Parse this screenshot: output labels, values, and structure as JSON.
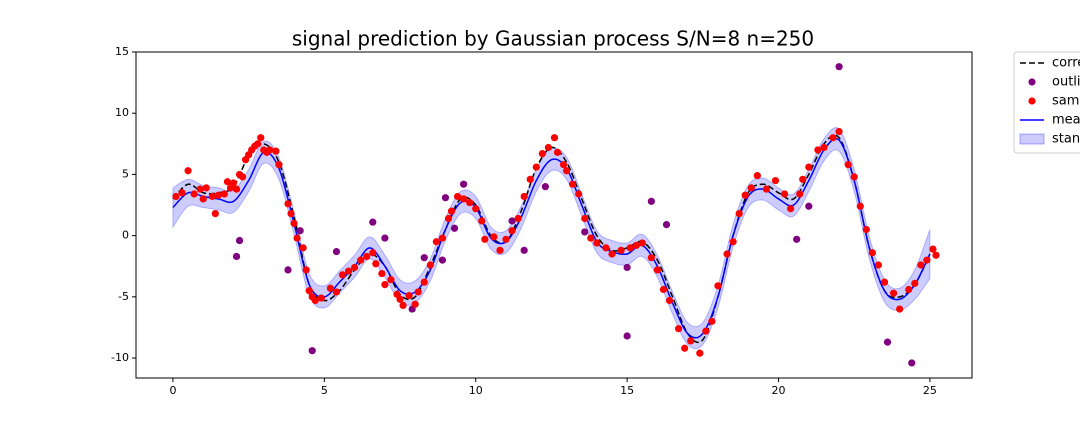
{
  "chart_data": {
    "type": "line",
    "title": "signal prediction by Gaussian process S/N=8 n=250",
    "xlim": [
      -1.22,
      26.39
    ],
    "ylim": [
      -11.63,
      15
    ],
    "xticks": [
      0,
      5,
      10,
      15,
      20,
      25
    ],
    "yticks": [
      -10,
      -5,
      0,
      5,
      10,
      15
    ],
    "grid": false,
    "legend": "outside right",
    "x": [
      0,
      0.5,
      1,
      1.5,
      2,
      2.5,
      3,
      3.5,
      4,
      4.5,
      5,
      5.5,
      6,
      6.5,
      7,
      7.5,
      8,
      8.5,
      9,
      9.5,
      10,
      10.5,
      11,
      11.5,
      12,
      12.5,
      13,
      13.5,
      14,
      14.5,
      15,
      15.5,
      16,
      16.5,
      17,
      17.5,
      18,
      18.5,
      19,
      19.5,
      20,
      20.5,
      21,
      21.5,
      22,
      22.5,
      23,
      23.5,
      24,
      24.5,
      25
    ],
    "series": [
      {
        "name": "corre",
        "type": "line",
        "dash": true,
        "color": "#000000",
        "values": [
          3.0,
          4.2,
          3.5,
          3.5,
          4.0,
          6.5,
          7.5,
          6.0,
          1.5,
          -4.0,
          -5.3,
          -4.5,
          -2.8,
          -1.5,
          -2.5,
          -4.8,
          -5.0,
          -2.5,
          0.5,
          3.0,
          2.5,
          0.0,
          -0.5,
          2.0,
          5.5,
          7.2,
          6.0,
          3.0,
          0.0,
          -1.2,
          -1.0,
          -0.5,
          -2.0,
          -5.0,
          -8.0,
          -8.5,
          -5.0,
          0.0,
          3.5,
          4.2,
          3.5,
          3.0,
          5.0,
          7.5,
          8.0,
          4.5,
          -1.0,
          -4.5,
          -5.0,
          -4.0,
          -1.5
        ]
      },
      {
        "name": "outlie",
        "type": "scatter",
        "color": "#800080",
        "x": [
          2.1,
          2.2,
          3.8,
          4.2,
          4.6,
          5.4,
          6.6,
          7.0,
          7.9,
          8.3,
          8.9,
          9.0,
          9.3,
          9.6,
          11.2,
          11.6,
          12.3,
          13.6,
          15.0,
          15.0,
          15.8,
          16.3,
          20.6,
          21.0,
          22.0,
          23.6,
          24.4
        ],
        "values": [
          -1.7,
          -0.4,
          -2.8,
          0.4,
          -9.4,
          -1.3,
          1.1,
          -0.2,
          -6.0,
          -1.8,
          -2.0,
          3.1,
          0.6,
          4.2,
          1.2,
          -1.2,
          4.0,
          0.3,
          -8.2,
          -2.6,
          2.8,
          0.9,
          -0.3,
          2.4,
          13.8,
          -8.7,
          -10.4
        ]
      },
      {
        "name": "samp",
        "type": "scatter",
        "color": "#ff0000",
        "x": [
          0.1,
          0.3,
          0.5,
          0.7,
          0.9,
          1.0,
          1.1,
          1.3,
          1.4,
          1.5,
          1.7,
          1.8,
          1.9,
          2.0,
          2.1,
          2.2,
          2.3,
          2.4,
          2.5,
          2.6,
          2.7,
          2.8,
          2.9,
          3.0,
          3.1,
          3.2,
          3.4,
          3.5,
          3.8,
          3.9,
          4.0,
          4.1,
          4.3,
          4.4,
          4.5,
          4.6,
          4.7,
          4.9,
          5.2,
          5.4,
          5.6,
          5.8,
          6.0,
          6.2,
          6.4,
          6.6,
          6.7,
          6.9,
          7.0,
          7.2,
          7.4,
          7.5,
          7.6,
          7.8,
          8.0,
          8.1,
          8.3,
          8.5,
          8.7,
          8.9,
          9.1,
          9.2,
          9.4,
          9.6,
          9.8,
          10.0,
          10.2,
          10.3,
          10.6,
          10.8,
          11.0,
          11.2,
          11.4,
          11.6,
          11.8,
          12.0,
          12.2,
          12.4,
          12.6,
          12.7,
          12.9,
          13.0,
          13.2,
          13.4,
          13.6,
          13.8,
          14.0,
          14.3,
          14.5,
          14.8,
          15.1,
          15.3,
          15.5,
          15.8,
          16.0,
          16.2,
          16.4,
          16.7,
          16.9,
          17.1,
          17.4,
          17.6,
          17.8,
          18.0,
          18.3,
          18.5,
          18.7,
          18.9,
          19.1,
          19.3,
          19.6,
          19.9,
          20.2,
          20.4,
          20.7,
          20.8,
          21.0,
          21.3,
          21.5,
          21.8,
          22.0,
          22.3,
          22.5,
          22.7,
          22.9,
          23.1,
          23.3,
          23.5,
          23.8,
          24.0,
          24.3,
          24.5,
          24.7,
          24.9,
          25.1,
          25.2
        ],
        "values": [
          3.2,
          3.5,
          5.3,
          3.4,
          3.8,
          3.0,
          3.9,
          3.2,
          1.8,
          3.3,
          3.4,
          4.4,
          3.9,
          4.3,
          3.8,
          5.0,
          4.8,
          6.2,
          6.6,
          7.0,
          7.3,
          7.5,
          8.0,
          7.0,
          6.8,
          7.0,
          6.9,
          5.8,
          2.6,
          1.8,
          1.0,
          -0.2,
          -1.0,
          -2.8,
          -4.5,
          -5.0,
          -5.3,
          -5.1,
          -4.3,
          -4.6,
          -3.2,
          -2.9,
          -2.6,
          -2.0,
          -1.7,
          -1.4,
          -2.3,
          -3.1,
          -4.0,
          -3.6,
          -4.8,
          -5.2,
          -5.7,
          -4.9,
          -5.6,
          -4.6,
          -3.8,
          -2.4,
          -0.5,
          -0.2,
          1.4,
          2.0,
          3.2,
          3.0,
          2.7,
          2.2,
          1.2,
          -0.3,
          -0.1,
          -1.2,
          -0.3,
          0.4,
          1.4,
          3.2,
          4.6,
          5.6,
          6.7,
          7.2,
          8.0,
          6.8,
          5.8,
          5.3,
          4.2,
          3.4,
          1.4,
          -0.2,
          -0.6,
          -1.0,
          -1.5,
          -1.2,
          -1.0,
          -0.8,
          -0.6,
          -1.8,
          -2.8,
          -4.4,
          -5.3,
          -7.6,
          -9.2,
          -8.6,
          -9.6,
          -7.8,
          -7.0,
          -4.1,
          -1.5,
          -0.5,
          1.8,
          3.3,
          3.9,
          4.9,
          3.8,
          4.5,
          3.4,
          2.2,
          3.4,
          4.6,
          5.6,
          7.0,
          7.2,
          8.0,
          8.5,
          5.8,
          4.8,
          2.4,
          0.5,
          -1.4,
          -2.4,
          -3.8,
          -4.7,
          -6.0,
          -4.4,
          -3.9,
          -2.4,
          -2.0,
          -1.1,
          -1.6
        ]
      },
      {
        "name": "mean",
        "type": "line",
        "dash": false,
        "color": "#0000ff",
        "values": [
          2.3,
          3.5,
          3.2,
          3.0,
          2.8,
          4.5,
          6.8,
          5.5,
          1.0,
          -4.0,
          -5.0,
          -3.8,
          -2.5,
          -1.0,
          -2.5,
          -4.5,
          -4.6,
          -2.8,
          0.5,
          2.7,
          2.3,
          -0.2,
          -0.5,
          1.5,
          4.5,
          6.2,
          5.5,
          2.5,
          -0.5,
          -1.3,
          -1.5,
          -0.8,
          -2.5,
          -5.5,
          -8.0,
          -8.0,
          -5.0,
          0.0,
          3.2,
          3.8,
          3.0,
          2.5,
          4.5,
          7.0,
          7.8,
          4.5,
          -1.0,
          -4.5,
          -5.2,
          -4.0,
          -1.5
        ]
      },
      {
        "name": "stanc",
        "type": "area",
        "color": "#0000ff",
        "upper": [
          3.9,
          4.6,
          4.1,
          3.9,
          3.7,
          5.4,
          7.7,
          6.4,
          1.9,
          -3.1,
          -4.1,
          -2.9,
          -1.6,
          -0.1,
          -1.6,
          -3.6,
          -3.7,
          -1.9,
          1.4,
          3.6,
          3.2,
          0.7,
          0.4,
          2.4,
          5.4,
          7.1,
          6.4,
          3.4,
          0.4,
          -0.4,
          -0.6,
          0.1,
          -1.6,
          -4.6,
          -7.1,
          -7.1,
          -4.1,
          0.9,
          4.1,
          4.7,
          3.9,
          3.4,
          5.4,
          7.9,
          8.7,
          5.4,
          -0.1,
          -3.6,
          -4.3,
          -2.8,
          0.5
        ],
        "lower": [
          0.7,
          2.4,
          2.3,
          2.1,
          1.9,
          3.6,
          5.9,
          4.6,
          0.1,
          -4.9,
          -5.9,
          -4.7,
          -3.4,
          -1.9,
          -3.4,
          -5.4,
          -5.5,
          -3.7,
          -0.4,
          1.8,
          1.4,
          -1.1,
          -1.4,
          0.6,
          3.6,
          5.3,
          4.6,
          1.6,
          -1.4,
          -2.2,
          -2.4,
          -1.7,
          -3.4,
          -6.4,
          -8.9,
          -8.9,
          -5.9,
          -0.9,
          2.3,
          2.9,
          2.1,
          1.6,
          3.6,
          6.1,
          6.9,
          3.6,
          -1.9,
          -5.4,
          -6.1,
          -5.2,
          -3.5
        ]
      }
    ]
  }
}
